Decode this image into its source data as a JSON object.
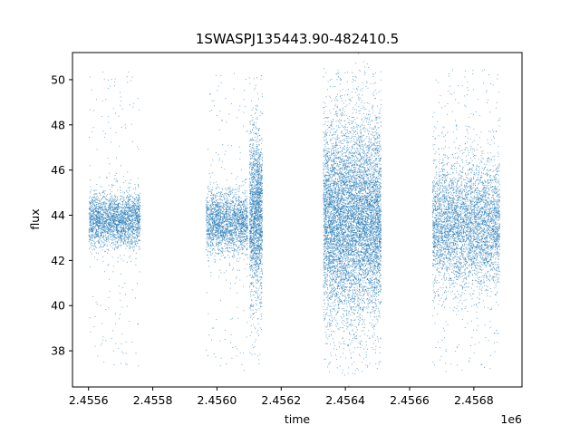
{
  "chart_data": {
    "type": "scatter",
    "title": "1SWASPJ135443.90-482410.5",
    "xlabel": "time",
    "ylabel": "flux",
    "x_offset_label": "1e6",
    "xlim": [
      2455550,
      2456950
    ],
    "ylim": [
      36.4,
      51.2
    ],
    "x_ticks": [
      {
        "value": 2455600,
        "label": "2.4556"
      },
      {
        "value": 2455800,
        "label": "2.4558"
      },
      {
        "value": 2456000,
        "label": "2.4560"
      },
      {
        "value": 2456200,
        "label": "2.4562"
      },
      {
        "value": 2456400,
        "label": "2.4564"
      },
      {
        "value": 2456600,
        "label": "2.4566"
      },
      {
        "value": 2456800,
        "label": "2.4568"
      }
    ],
    "y_ticks": [
      {
        "value": 38,
        "label": "38"
      },
      {
        "value": 40,
        "label": "40"
      },
      {
        "value": 42,
        "label": "42"
      },
      {
        "value": 44,
        "label": "44"
      },
      {
        "value": 46,
        "label": "46"
      },
      {
        "value": 48,
        "label": "48"
      },
      {
        "value": 50,
        "label": "50"
      }
    ],
    "grid": false,
    "legend": "none",
    "marker_color": "#1f77b4",
    "series": [
      {
        "observing_seasons": [
          {
            "t_start": 2455600,
            "t_end": 2455760,
            "flux_center": 43.8,
            "flux_core_spread": 0.6,
            "flux_outlier_min": 37.3,
            "flux_outlier_max": 50.4,
            "points": 2600
          },
          {
            "t_start": 2455965,
            "t_end": 2456095,
            "flux_center": 43.7,
            "flux_core_spread": 0.7,
            "flux_outlier_min": 37.1,
            "flux_outlier_max": 50.3,
            "points": 2200
          },
          {
            "t_start": 2456100,
            "t_end": 2456140,
            "flux_center": 44.1,
            "flux_core_spread": 1.8,
            "flux_outlier_min": 37.4,
            "flux_outlier_max": 50.2,
            "points": 1900
          },
          {
            "t_start": 2456330,
            "t_end": 2456510,
            "flux_center": 43.8,
            "flux_core_spread": 2.1,
            "flux_outlier_min": 37.0,
            "flux_outlier_max": 50.6,
            "points": 7800
          },
          {
            "t_start": 2456670,
            "t_end": 2456880,
            "flux_center": 43.6,
            "flux_core_spread": 1.4,
            "flux_outlier_min": 37.1,
            "flux_outlier_max": 50.5,
            "points": 4600
          }
        ]
      }
    ]
  }
}
